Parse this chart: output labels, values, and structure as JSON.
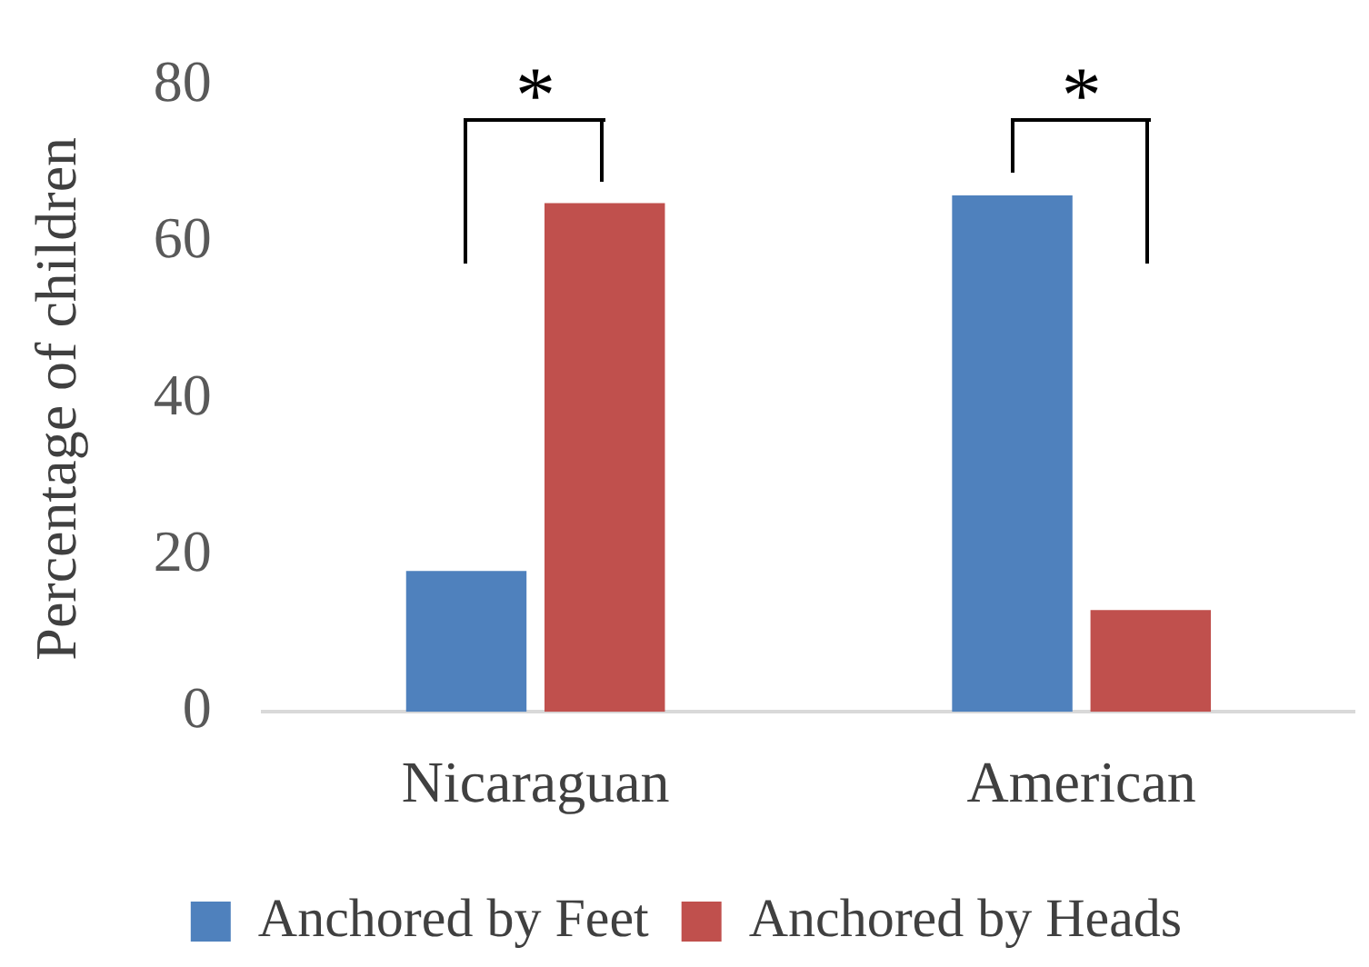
{
  "chart_data": {
    "type": "bar",
    "ylabel": "Percentage of children",
    "categories": [
      "Nicaraguan",
      "American"
    ],
    "series": [
      {
        "name": "Anchored by Feet",
        "color": "#4f81bd",
        "values": [
          18,
          66
        ]
      },
      {
        "name": "Anchored by Heads",
        "color": "#c0504d",
        "values": [
          65,
          13
        ]
      }
    ],
    "ylim": [
      0,
      80
    ],
    "yticks": [
      0,
      20,
      40,
      60,
      80
    ],
    "grid": false,
    "legend": "bottom",
    "annotations": [
      "*",
      "*"
    ]
  }
}
